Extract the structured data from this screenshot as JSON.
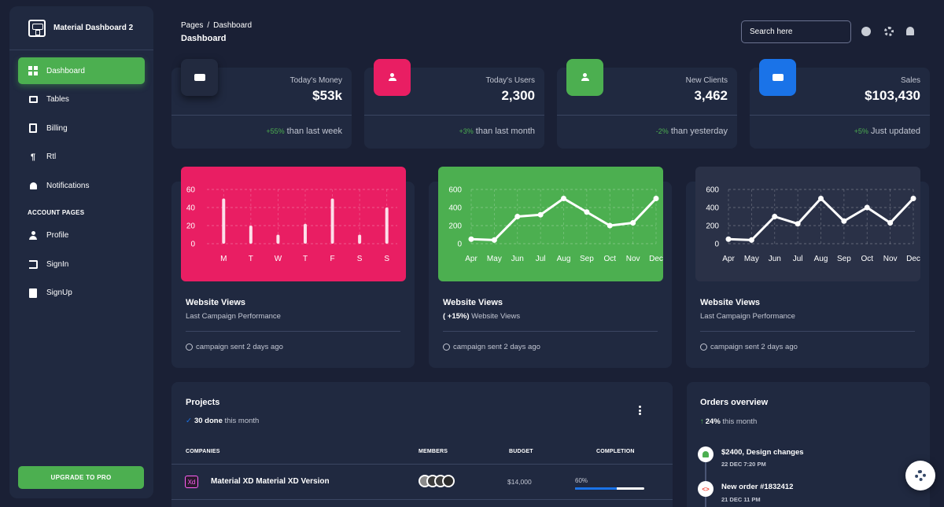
{
  "brand": {
    "name": "Material Dashboard 2"
  },
  "sidebar": {
    "items": [
      {
        "label": "Dashboard",
        "icon": "dashboard-icon"
      },
      {
        "label": "Tables",
        "icon": "table-icon"
      },
      {
        "label": "Billing",
        "icon": "receipt-icon"
      },
      {
        "label": "Rtl",
        "icon": "format-textdirection-icon"
      },
      {
        "label": "Notifications",
        "icon": "bell-icon"
      }
    ],
    "section_label": "ACCOUNT PAGES",
    "account_items": [
      {
        "label": "Profile",
        "icon": "person-icon"
      },
      {
        "label": "SignIn",
        "icon": "login-icon"
      },
      {
        "label": "SignUp",
        "icon": "assignment-icon"
      }
    ],
    "upgrade_label": "UPGRADE TO PRO"
  },
  "header": {
    "breadcrumb": {
      "parent": "Pages",
      "separator": "/",
      "current": "Dashboard"
    },
    "title": "Dashboard",
    "search_placeholder": "Search here"
  },
  "stats": [
    {
      "label": "Today's Money",
      "value": "$53k",
      "change": "+55%",
      "period": " than last week",
      "icon_color": "#222a3f",
      "icon": "weekend-icon"
    },
    {
      "label": "Today's Users",
      "value": "2,300",
      "change": "+3%",
      "period": " than last month",
      "icon_color": "#e91e63",
      "icon": "person-icon"
    },
    {
      "label": "New Clients",
      "value": "3,462",
      "change": "-2%",
      "period": " than yesterday",
      "icon_color": "#4caf50",
      "icon": "person-icon"
    },
    {
      "label": "Sales",
      "value": "$103,430",
      "change": "+5%",
      "period": " Just updated",
      "icon_color": "#1a73e8",
      "icon": "weekend-icon"
    }
  ],
  "charts": [
    {
      "title": "Website Views",
      "subtitle": "Last Campaign Performance",
      "subtitle_bold": "",
      "footer": "campaign sent 2 days ago"
    },
    {
      "title": "Website Views",
      "subtitle": " Website Views",
      "subtitle_bold": "( +15%)",
      "footer": "campaign sent 2 days ago"
    },
    {
      "title": "Website Views",
      "subtitle": "Last Campaign Performance",
      "subtitle_bold": "",
      "footer": "campaign sent 2 days ago"
    }
  ],
  "chart_data": [
    {
      "type": "bar",
      "categories": [
        "M",
        "T",
        "W",
        "T",
        "F",
        "S",
        "S"
      ],
      "values": [
        50,
        20,
        10,
        22,
        50,
        10,
        40
      ],
      "yticks": [
        "60",
        "40",
        "20",
        "0"
      ],
      "ylim": [
        0,
        60
      ],
      "background": "#e91e63"
    },
    {
      "type": "line",
      "categories": [
        "Apr",
        "May",
        "Jun",
        "Jul",
        "Aug",
        "Sep",
        "Oct",
        "Nov",
        "Dec"
      ],
      "values": [
        50,
        40,
        300,
        320,
        500,
        350,
        200,
        230,
        500
      ],
      "yticks": [
        "600",
        "400",
        "200",
        "0"
      ],
      "ylim": [
        0,
        600
      ],
      "background": "#4caf50"
    },
    {
      "type": "line",
      "categories": [
        "Apr",
        "May",
        "Jun",
        "Jul",
        "Aug",
        "Sep",
        "Oct",
        "Nov",
        "Dec"
      ],
      "values": [
        50,
        40,
        300,
        220,
        500,
        250,
        400,
        230,
        500
      ],
      "yticks": [
        "600",
        "400",
        "200",
        "0"
      ],
      "ylim": [
        0,
        600
      ],
      "background": "#2a3147"
    }
  ],
  "projects": {
    "title": "Projects",
    "done_bold": "30 done",
    "done_suffix": " this month",
    "headers": {
      "companies": "COMPANIES",
      "members": "MEMBERS",
      "budget": "BUDGET",
      "completion": "COMPLETION"
    },
    "rows": [
      {
        "icon_text": "Xd",
        "name": "Material XD Material XD Version",
        "budget": "$14,000",
        "completion_label": "60%",
        "completion": 0.6
      }
    ]
  },
  "orders": {
    "title": "Orders overview",
    "change_bold": "24%",
    "change_suffix": " this month",
    "items": [
      {
        "title": "$2400, Design changes",
        "date": "22 DEC 7:20 PM"
      },
      {
        "title": "New order #1832412",
        "date": "21 DEC 11 PM"
      }
    ]
  }
}
